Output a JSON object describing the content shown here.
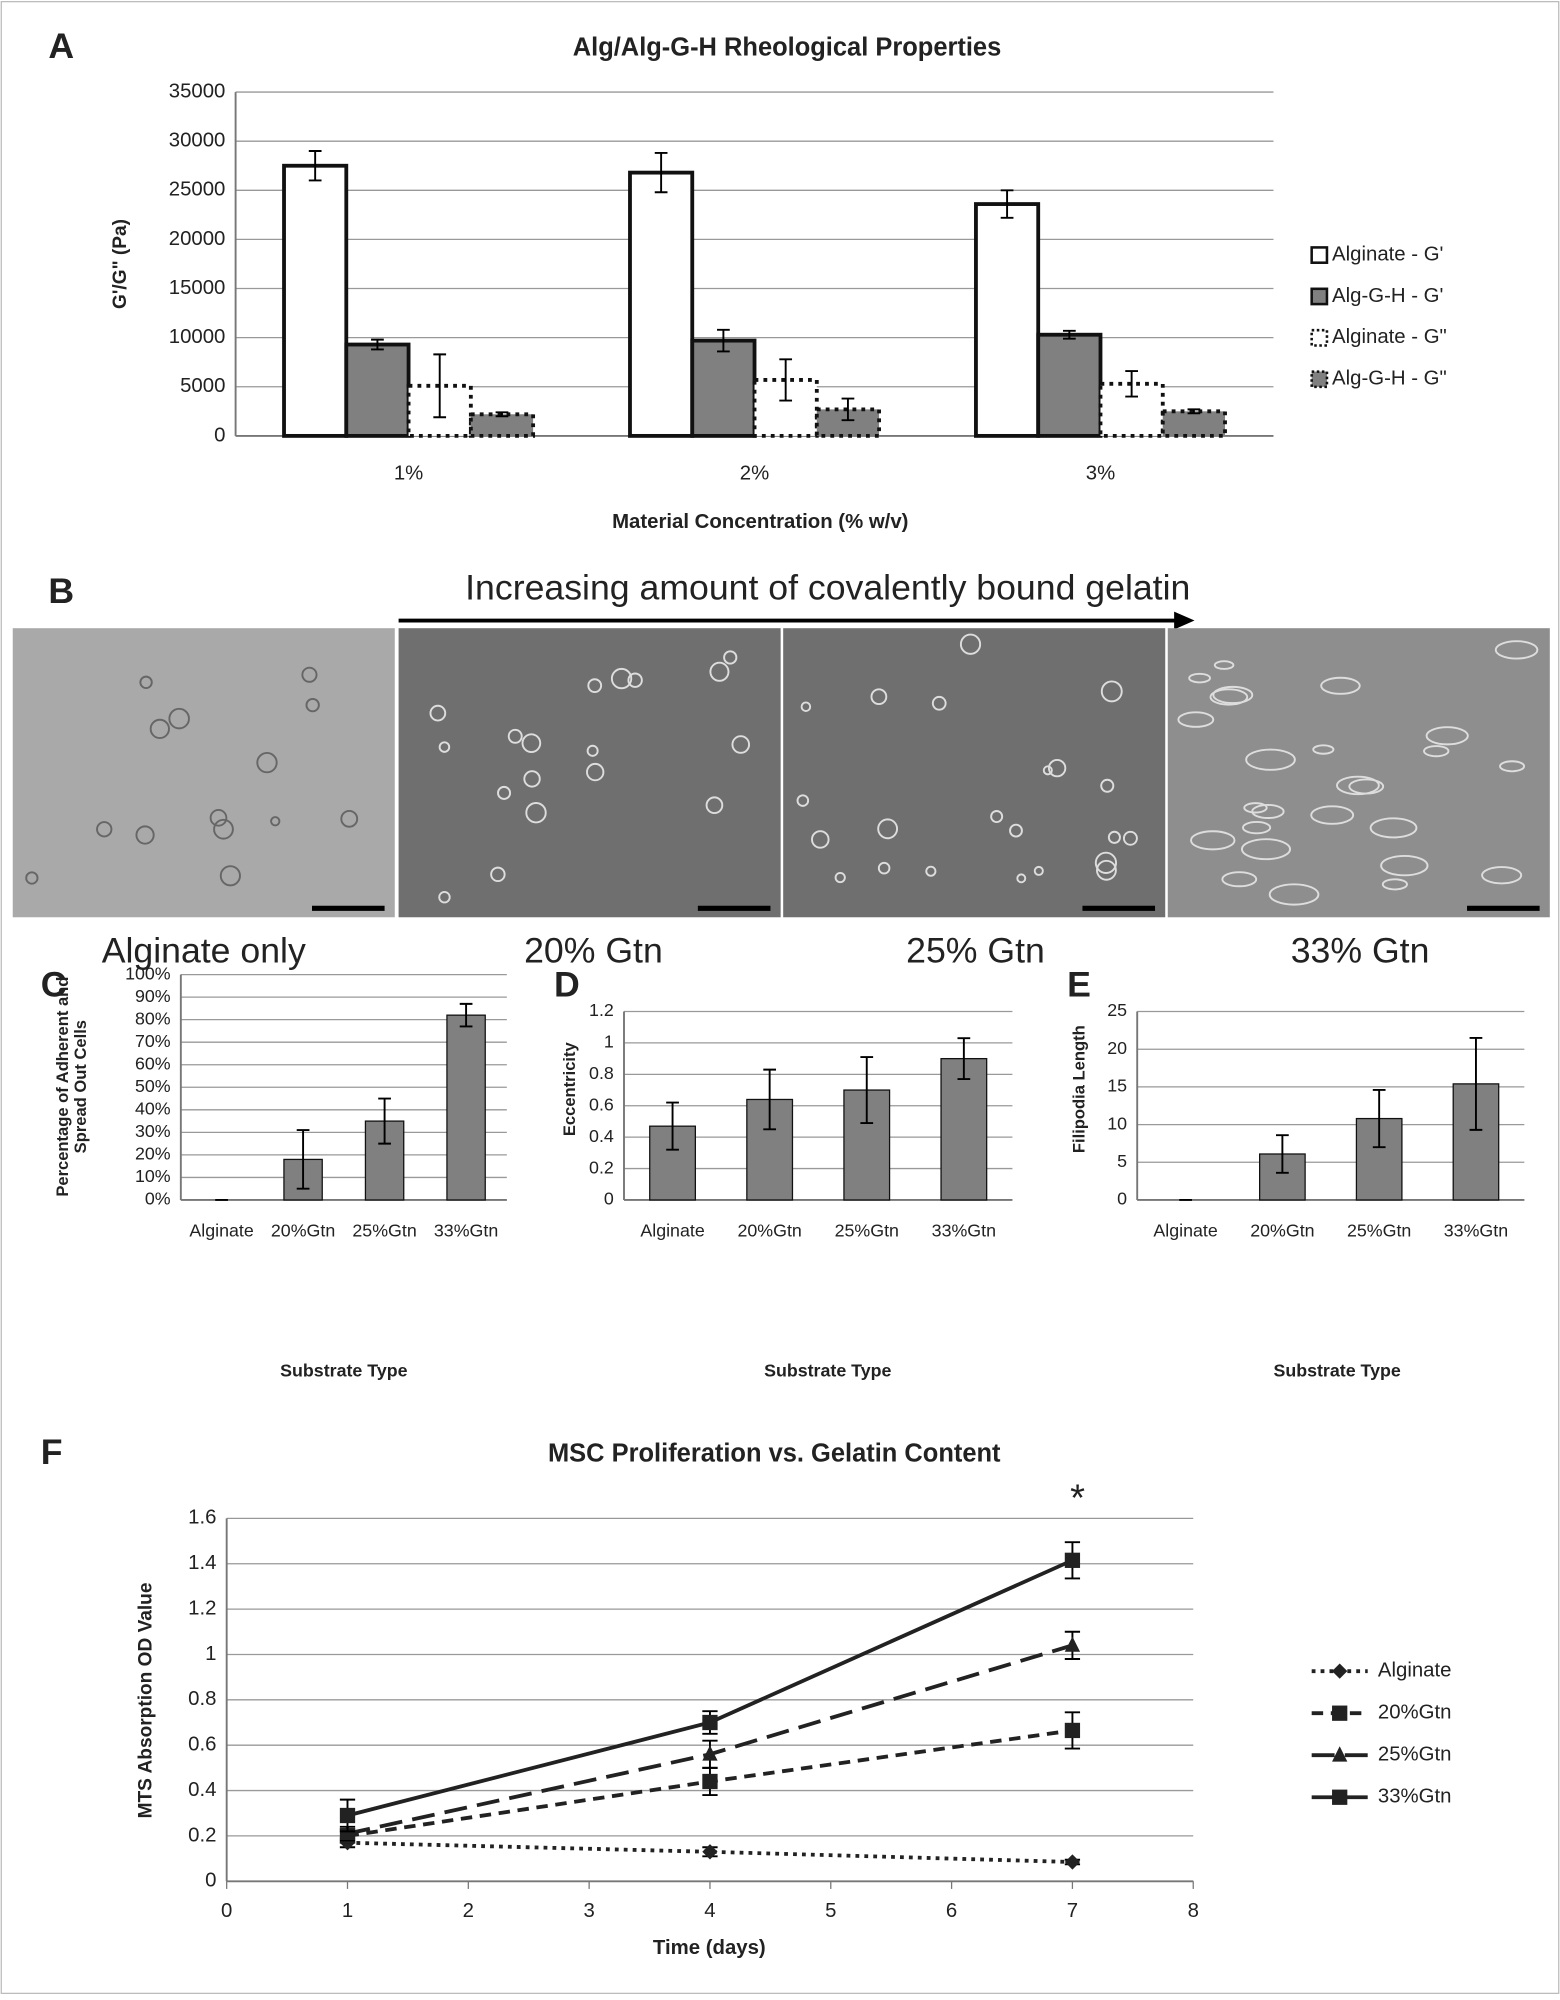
{
  "chart_data": [
    {
      "type": "bar",
      "panel": "A",
      "title": "Alg/Alg-G-H Rheological Properties",
      "xlabel": "Material Concentration (% w/v)",
      "ylabel": [
        "G'/G\" (Pa)"
      ],
      "categories": [
        "1%",
        "2%",
        "3%"
      ],
      "series": [
        {
          "name": "Alginate - G'",
          "color": "#ffffff",
          "line_style": "solid",
          "values": [
            27500,
            26800,
            23600
          ],
          "errors": [
            1500,
            2000,
            1400
          ]
        },
        {
          "name": "Alg-G-H - G'",
          "color": "#808080",
          "line_style": "solid",
          "values": [
            9300,
            9700,
            10300
          ],
          "errors": [
            500,
            1100,
            400
          ]
        },
        {
          "name": "Alginate - G\"",
          "color": "#ffffff",
          "line_style": "dotted",
          "values": [
            5100,
            5700,
            5300
          ],
          "errors": [
            3200,
            2100,
            1300
          ]
        },
        {
          "name": "Alg-G-H - G\"",
          "color": "#808080",
          "line_style": "dotted",
          "values": [
            2200,
            2700,
            2500
          ],
          "errors": [
            200,
            1100,
            200
          ]
        }
      ],
      "ylim": [
        0,
        35000
      ],
      "yticks": [
        0,
        5000,
        10000,
        15000,
        20000,
        25000,
        30000,
        35000
      ],
      "grid": true,
      "legend": "right"
    },
    {
      "type": "bar",
      "panel": "C",
      "xlabel": "Substrate Type",
      "ylabel": [
        "Percentage of Adherent and",
        "Spread Out Cells"
      ],
      "categories": [
        "Alginate",
        "20%Gtn",
        "25%Gtn",
        "33%Gtn"
      ],
      "color": "#808080",
      "line_style": "solid",
      "values": [
        0,
        18,
        35,
        82
      ],
      "errors": [
        0,
        13,
        10,
        5
      ],
      "ylim": [
        0,
        100
      ],
      "yticks": [
        {
          "value": 0,
          "label": "0%"
        },
        {
          "value": 10,
          "label": "10%"
        },
        {
          "value": 20,
          "label": "20%"
        },
        {
          "value": 30,
          "label": "30%"
        },
        {
          "value": 40,
          "label": "40%"
        },
        {
          "value": 50,
          "label": "50%"
        },
        {
          "value": 60,
          "label": "60%"
        },
        {
          "value": 70,
          "label": "70%"
        },
        {
          "value": 80,
          "label": "80%"
        },
        {
          "value": 90,
          "label": "90%"
        },
        {
          "value": 100,
          "label": "100%"
        }
      ],
      "grid": true
    },
    {
      "type": "bar",
      "panel": "D",
      "xlabel": "Substrate Type",
      "ylabel": [
        "Eccentricity"
      ],
      "categories": [
        "Alginate",
        "20%Gtn",
        "25%Gtn",
        "33%Gtn"
      ],
      "color": "#808080",
      "line_style": "solid",
      "values": [
        0.47,
        0.64,
        0.7,
        0.9
      ],
      "errors": [
        0.15,
        0.19,
        0.21,
        0.13
      ],
      "ylim": [
        0,
        1.2
      ],
      "yticks": [
        0,
        0.2,
        0.4,
        0.6,
        0.8,
        1,
        1.2
      ],
      "grid": true
    },
    {
      "type": "bar",
      "panel": "E",
      "xlabel": "Substrate Type",
      "ylabel": [
        "Filipodia Length"
      ],
      "categories": [
        "Alginate",
        "20%Gtn",
        "25%Gtn",
        "33%Gtn"
      ],
      "color": "#808080",
      "line_style": "solid",
      "values": [
        0,
        6.1,
        10.8,
        15.4
      ],
      "errors": [
        0,
        2.5,
        3.8,
        6.1
      ],
      "ylim": [
        0,
        25
      ],
      "yticks": [
        0,
        5,
        10,
        15,
        20,
        25
      ],
      "grid": true
    },
    {
      "type": "line",
      "panel": "F",
      "title": "MSC Proliferation vs. Gelatin Content",
      "xlabel": "Time (days)",
      "ylabel": [
        "MTS Absorption OD Value"
      ],
      "annotation": "*",
      "x": [
        1,
        4,
        7
      ],
      "series": [
        {
          "name": "Alginate",
          "color": "#222222",
          "line_style": "dotted",
          "marker": "diamond",
          "values": [
            0.17,
            0.13,
            0.085
          ],
          "errors": [
            0.02,
            0.02,
            0.01
          ]
        },
        {
          "name": "20%Gtn",
          "color": "#222222",
          "line_style": "dashed",
          "marker": "square",
          "values": [
            0.2,
            0.44,
            0.665
          ],
          "errors": [
            0.03,
            0.06,
            0.08
          ]
        },
        {
          "name": "25%Gtn",
          "color": "#222222",
          "line_style": "longdash",
          "marker": "triangle",
          "values": [
            0.21,
            0.56,
            1.04
          ],
          "errors": [
            0.03,
            0.06,
            0.06
          ]
        },
        {
          "name": "33%Gtn",
          "color": "#222222",
          "line_style": "solid",
          "marker": "square",
          "values": [
            0.29,
            0.7,
            1.415
          ],
          "errors": [
            0.07,
            0.05,
            0.08
          ]
        }
      ],
      "xlim": [
        0,
        8
      ],
      "xticks": [
        0,
        1,
        2,
        3,
        4,
        5,
        6,
        7,
        8
      ],
      "ylim": [
        0,
        1.6
      ],
      "yticks": [
        0,
        0.2,
        0.4,
        0.6,
        0.8,
        1,
        1.2,
        1.4,
        1.6
      ],
      "grid": true,
      "legend": "right"
    }
  ],
  "panel_b": {
    "panel": "B",
    "caption": "Increasing amount of covalently bound gelatin",
    "images": [
      "Alginate only",
      "20% Gtn",
      "25% Gtn",
      "33% Gtn"
    ]
  }
}
